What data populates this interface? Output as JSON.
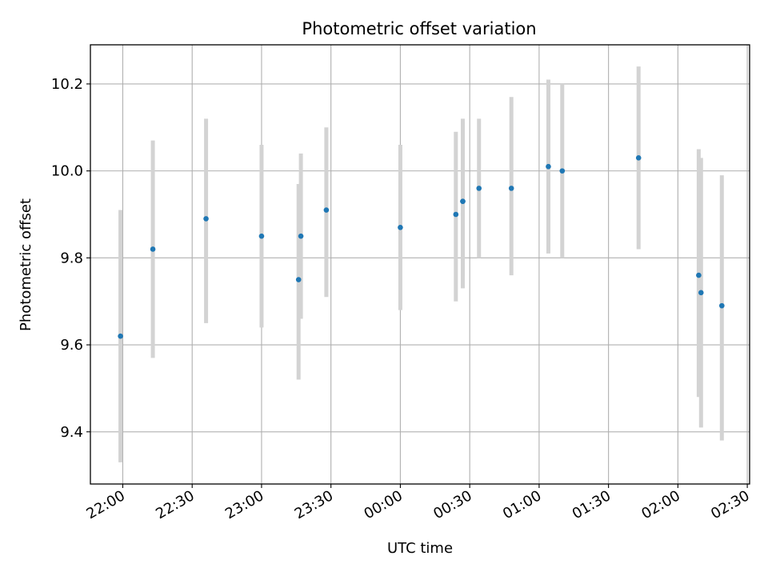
{
  "chart_data": {
    "type": "scatter",
    "title": "Photometric offset variation",
    "xlabel": "UTC time",
    "ylabel": "Photometric offset",
    "x_ticks": [
      "22:00",
      "22:30",
      "23:00",
      "23:30",
      "00:00",
      "00:30",
      "01:00",
      "01:30",
      "02:00",
      "02:30"
    ],
    "y_ticks": [
      "9.4",
      "9.6",
      "9.8",
      "10.0",
      "10.2"
    ],
    "ylim": [
      9.28,
      10.29
    ],
    "xlim": [
      "21:46",
      "02:31"
    ],
    "grid": true,
    "series": [
      {
        "marker_color": "#1f77b4",
        "errorbar_color": "#d3d3d3",
        "points": [
          {
            "t": "21:59",
            "y": 9.62,
            "lo": 9.33,
            "hi": 9.91
          },
          {
            "t": "22:13",
            "y": 9.82,
            "lo": 9.57,
            "hi": 10.07
          },
          {
            "t": "22:36",
            "y": 9.89,
            "lo": 9.65,
            "hi": 10.12
          },
          {
            "t": "23:00",
            "y": 9.85,
            "lo": 9.64,
            "hi": 10.06
          },
          {
            "t": "23:16",
            "y": 9.75,
            "lo": 9.52,
            "hi": 9.97
          },
          {
            "t": "23:17",
            "y": 9.85,
            "lo": 9.66,
            "hi": 10.04
          },
          {
            "t": "23:28",
            "y": 9.91,
            "lo": 9.71,
            "hi": 10.1
          },
          {
            "t": "00:00",
            "y": 9.87,
            "lo": 9.68,
            "hi": 10.06
          },
          {
            "t": "00:24",
            "y": 9.9,
            "lo": 9.7,
            "hi": 10.09
          },
          {
            "t": "00:27",
            "y": 9.93,
            "lo": 9.73,
            "hi": 10.12
          },
          {
            "t": "00:27",
            "y": 9.93,
            "lo": 9.76,
            "hi": 10.11
          },
          {
            "t": "00:34",
            "y": 9.96,
            "lo": 9.8,
            "hi": 10.12
          },
          {
            "t": "00:48",
            "y": 9.96,
            "lo": 9.76,
            "hi": 10.17
          },
          {
            "t": "01:04",
            "y": 10.01,
            "lo": 9.81,
            "hi": 10.21
          },
          {
            "t": "01:10",
            "y": 10.0,
            "lo": 9.8,
            "hi": 10.2
          },
          {
            "t": "01:43",
            "y": 10.03,
            "lo": 9.82,
            "hi": 10.24
          },
          {
            "t": "02:09",
            "y": 9.76,
            "lo": 9.48,
            "hi": 10.05
          },
          {
            "t": "02:10",
            "y": 9.72,
            "lo": 9.41,
            "hi": 10.03
          },
          {
            "t": "02:19",
            "y": 9.69,
            "lo": 9.38,
            "hi": 9.99
          }
        ]
      }
    ]
  }
}
